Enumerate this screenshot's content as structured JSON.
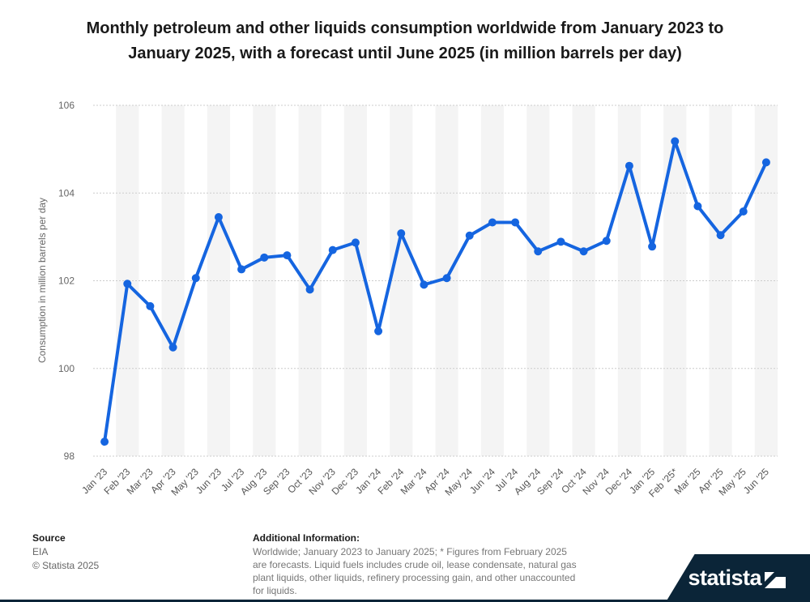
{
  "title": "Monthly petroleum and other liquids consumption worldwide from January 2023 to January 2025, with a forecast until June 2025 (in million barrels per day)",
  "footer": {
    "source_heading": "Source",
    "source_name": "EIA",
    "copyright": "© Statista 2025",
    "info_heading": "Additional Information:",
    "info_text": "Worldwide; January 2023 to January 2025; * Figures from February 2025 are forecasts. Liquid fuels includes crude oil, lease condensate, natural gas plant liquids, other liquids, refinery processing gain, and other unaccounted for liquids.",
    "brand": "statista"
  },
  "colors": {
    "line": "#1565e0",
    "band": "#f4f4f4",
    "grid": "#cccccc",
    "brand_bg": "#0b2538"
  },
  "chart_data": {
    "type": "line",
    "ylabel": "Consumption in million barrels per day",
    "xlabel": "",
    "ylim": [
      98,
      106
    ],
    "yticks": [
      98,
      100,
      102,
      104,
      106
    ],
    "grid": true,
    "categories": [
      "Jan '23",
      "Feb '23",
      "Mar '23",
      "Apr '23",
      "May '23",
      "Jun '23",
      "Jul '23",
      "Aug '23",
      "Sep '23",
      "Oct '23",
      "Nov '23",
      "Dec '23",
      "Jan '24",
      "Feb '24",
      "Mar '24",
      "Apr '24",
      "May '24",
      "Jun '24",
      "Jul '24",
      "Aug '24",
      "Sep '24",
      "Oct '24",
      "Nov '24",
      "Dec '24",
      "Jan '25",
      "Feb '25*",
      "Mar '25",
      "Apr '25",
      "May '25",
      "Jun '25"
    ],
    "series": [
      {
        "values": [
          98.33,
          101.93,
          101.42,
          100.48,
          102.06,
          103.45,
          102.26,
          102.53,
          102.58,
          101.8,
          102.7,
          102.87,
          100.85,
          103.08,
          101.91,
          102.06,
          103.03,
          103.33,
          103.33,
          102.67,
          102.89,
          102.67,
          102.91,
          104.62,
          102.78,
          105.18,
          103.7,
          103.04,
          103.58,
          104.7
        ]
      }
    ]
  }
}
